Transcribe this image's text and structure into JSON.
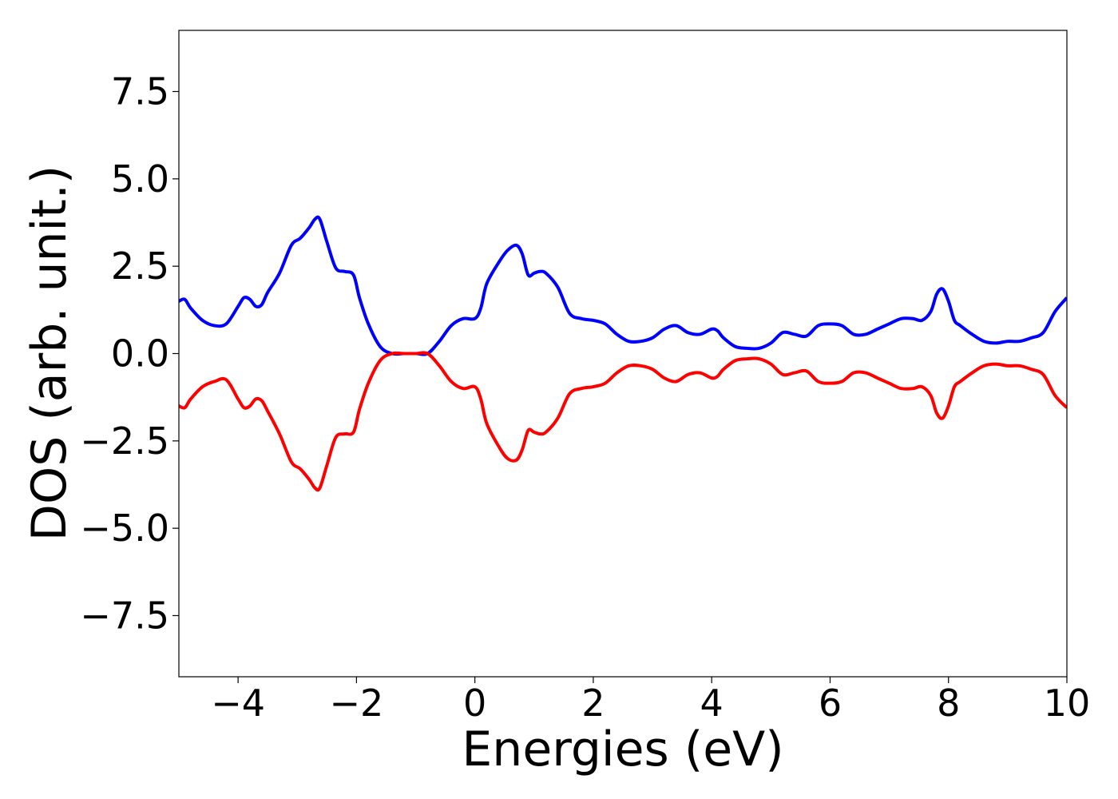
{
  "chart_data": {
    "type": "line",
    "title": "",
    "xlabel": "Energies (eV)",
    "ylabel": "DOS (arb. unit.)",
    "xlim": [
      -5,
      10
    ],
    "ylim": [
      -9.25,
      9.25
    ],
    "xticks": [
      -4,
      -2,
      0,
      2,
      4,
      6,
      8,
      10
    ],
    "xtick_labels": [
      "−4",
      "−2",
      "0",
      "2",
      "4",
      "6",
      "8",
      "10"
    ],
    "yticks": [
      7.5,
      5.0,
      2.5,
      0.0,
      -2.5,
      -5.0,
      -7.5
    ],
    "ytick_labels": [
      "7.5",
      "5.0",
      "2.5",
      "0.0",
      "−2.5",
      "−5.0",
      "−7.5"
    ],
    "grid": false,
    "legend": "none",
    "series": [
      {
        "color": "#0000ff",
        "x": [
          -5.0,
          -4.9,
          -4.8,
          -4.6,
          -4.4,
          -4.2,
          -4.0,
          -3.9,
          -3.8,
          -3.7,
          -3.6,
          -3.5,
          -3.3,
          -3.1,
          -2.95,
          -2.8,
          -2.7,
          -2.62,
          -2.5,
          -2.35,
          -2.2,
          -2.05,
          -1.95,
          -1.8,
          -1.6,
          -1.4,
          -1.2,
          -1.0,
          -0.8,
          -0.6,
          -0.4,
          -0.2,
          0.0,
          0.1,
          0.2,
          0.4,
          0.55,
          0.7,
          0.8,
          0.9,
          1.0,
          1.1,
          1.2,
          1.4,
          1.6,
          1.8,
          2.0,
          2.2,
          2.4,
          2.6,
          2.8,
          3.0,
          3.2,
          3.4,
          3.6,
          3.8,
          4.0,
          4.1,
          4.2,
          4.4,
          4.6,
          4.8,
          5.0,
          5.2,
          5.4,
          5.6,
          5.8,
          6.0,
          6.2,
          6.4,
          6.6,
          6.8,
          7.0,
          7.2,
          7.4,
          7.55,
          7.7,
          7.8,
          7.9,
          8.0,
          8.1,
          8.2,
          8.4,
          8.6,
          8.8,
          9.0,
          9.2,
          9.4,
          9.6,
          9.8,
          10.0
        ],
        "y": [
          1.5,
          1.55,
          1.3,
          0.95,
          0.8,
          0.85,
          1.35,
          1.6,
          1.55,
          1.35,
          1.4,
          1.75,
          2.3,
          3.1,
          3.3,
          3.6,
          3.85,
          3.85,
          3.2,
          2.45,
          2.35,
          2.25,
          1.6,
          0.85,
          0.2,
          0.0,
          0.0,
          0.0,
          0.0,
          0.35,
          0.8,
          1.0,
          1.0,
          1.3,
          2.0,
          2.6,
          2.95,
          3.1,
          2.85,
          2.25,
          2.3,
          2.35,
          2.3,
          1.9,
          1.15,
          1.0,
          0.95,
          0.85,
          0.55,
          0.35,
          0.35,
          0.45,
          0.7,
          0.8,
          0.6,
          0.55,
          0.7,
          0.65,
          0.45,
          0.2,
          0.15,
          0.15,
          0.3,
          0.6,
          0.55,
          0.5,
          0.8,
          0.85,
          0.8,
          0.55,
          0.55,
          0.7,
          0.85,
          1.0,
          1.0,
          0.95,
          1.2,
          1.7,
          1.85,
          1.5,
          0.95,
          0.8,
          0.55,
          0.35,
          0.3,
          0.35,
          0.35,
          0.45,
          0.6,
          1.2,
          1.6
        ]
      },
      {
        "color": "#ff0000",
        "x": [
          -5.0,
          -4.9,
          -4.8,
          -4.6,
          -4.4,
          -4.2,
          -4.0,
          -3.9,
          -3.8,
          -3.7,
          -3.6,
          -3.5,
          -3.3,
          -3.1,
          -2.95,
          -2.8,
          -2.7,
          -2.62,
          -2.5,
          -2.35,
          -2.2,
          -2.05,
          -1.95,
          -1.8,
          -1.6,
          -1.4,
          -1.2,
          -1.0,
          -0.8,
          -0.6,
          -0.4,
          -0.2,
          0.0,
          0.1,
          0.2,
          0.4,
          0.55,
          0.7,
          0.8,
          0.9,
          1.0,
          1.1,
          1.2,
          1.4,
          1.6,
          1.8,
          2.0,
          2.2,
          2.4,
          2.6,
          2.8,
          3.0,
          3.2,
          3.4,
          3.6,
          3.8,
          4.0,
          4.1,
          4.2,
          4.4,
          4.6,
          4.8,
          5.0,
          5.2,
          5.4,
          5.6,
          5.8,
          6.0,
          6.2,
          6.4,
          6.6,
          6.8,
          7.0,
          7.2,
          7.4,
          7.55,
          7.7,
          7.8,
          7.9,
          8.0,
          8.1,
          8.2,
          8.4,
          8.6,
          8.8,
          9.0,
          9.2,
          9.4,
          9.6,
          9.8,
          10.0
        ],
        "y": [
          -1.5,
          -1.55,
          -1.3,
          -0.95,
          -0.8,
          -0.75,
          -1.3,
          -1.55,
          -1.5,
          -1.3,
          -1.35,
          -1.65,
          -2.3,
          -3.1,
          -3.3,
          -3.6,
          -3.85,
          -3.85,
          -3.2,
          -2.4,
          -2.3,
          -2.25,
          -1.6,
          -0.85,
          -0.2,
          0.0,
          0.0,
          0.0,
          0.0,
          -0.35,
          -0.8,
          -1.0,
          -0.95,
          -1.3,
          -2.0,
          -2.65,
          -3.0,
          -3.05,
          -2.75,
          -2.2,
          -2.25,
          -2.3,
          -2.25,
          -1.85,
          -1.15,
          -1.0,
          -0.95,
          -0.85,
          -0.55,
          -0.35,
          -0.35,
          -0.45,
          -0.7,
          -0.8,
          -0.6,
          -0.55,
          -0.7,
          -0.65,
          -0.45,
          -0.2,
          -0.15,
          -0.15,
          -0.3,
          -0.6,
          -0.55,
          -0.5,
          -0.8,
          -0.85,
          -0.8,
          -0.55,
          -0.55,
          -0.7,
          -0.85,
          -1.0,
          -1.0,
          -0.95,
          -1.2,
          -1.7,
          -1.85,
          -1.5,
          -0.95,
          -0.8,
          -0.55,
          -0.35,
          -0.3,
          -0.35,
          -0.35,
          -0.45,
          -0.6,
          -1.2,
          -1.55
        ]
      }
    ]
  }
}
